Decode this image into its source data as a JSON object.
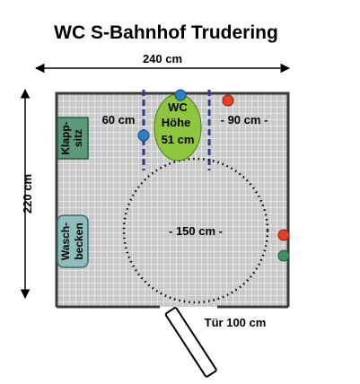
{
  "title": "WC S-Bahnhof Trudering",
  "dimensions": {
    "width_label": "240 cm",
    "height_label": "220 cm",
    "left_clearance_label": "60 cm",
    "right_clearance_label": "- 90 cm -",
    "turning_circle_label": "- 150 cm -",
    "door_label": "Tür 100 cm"
  },
  "fixtures": {
    "toilet": {
      "line1": "WC",
      "line2": "Höhe",
      "line3": "51 cm"
    },
    "folding_seat": {
      "line1": "Klapp-",
      "line2": "sitz"
    },
    "washbasin": {
      "line1": "Wasch-",
      "line2": "becken"
    }
  },
  "colors": {
    "floor": "#c8c8c8",
    "grid": "#ffffff",
    "wall": "#3a3a3a",
    "toilet": "#8fc63f",
    "folding_seat": "#5a9a7a",
    "washbasin": "#8fbcbc",
    "grab_rail": "#2b3990",
    "button_blue": "#2d7fc1",
    "button_red": "#e8401c",
    "button_green": "#3f8f5f"
  }
}
